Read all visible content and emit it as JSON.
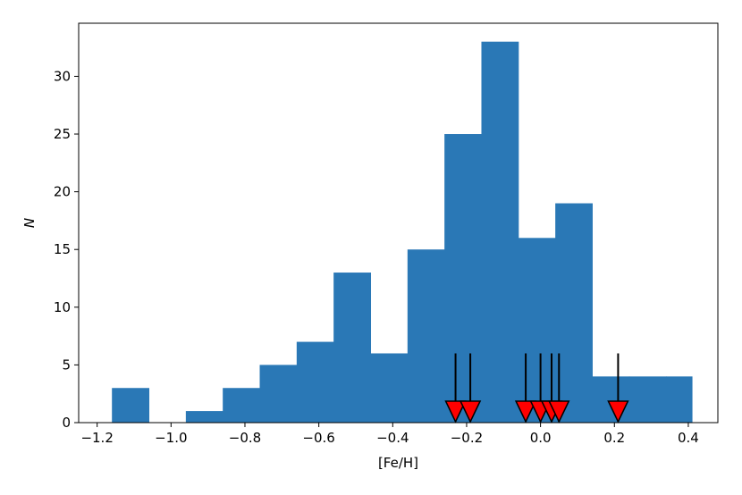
{
  "chart_data": {
    "type": "bar",
    "title": "",
    "xlabel": "[Fe/H]",
    "ylabel": "N",
    "xlim": [
      -1.25,
      0.48
    ],
    "ylim": [
      0,
      34.6
    ],
    "xticks": [
      -1.2,
      -1.0,
      -0.8,
      -0.6,
      -0.4,
      -0.2,
      0.0,
      0.2,
      0.4
    ],
    "xtick_labels": [
      "−1.2",
      "−1.0",
      "−0.8",
      "−0.6",
      "−0.4",
      "−0.2",
      "0.0",
      "0.2",
      "0.4"
    ],
    "yticks": [
      0,
      5,
      10,
      15,
      20,
      25,
      30
    ],
    "ytick_labels": [
      "0",
      "5",
      "10",
      "15",
      "20",
      "25",
      "30"
    ],
    "grid": false,
    "bar_color": "#2a78b6",
    "bins": [
      {
        "start": -1.16,
        "end": -1.06,
        "count": 3
      },
      {
        "start": -1.06,
        "end": -0.96,
        "count": 0
      },
      {
        "start": -0.96,
        "end": -0.86,
        "count": 1
      },
      {
        "start": -0.86,
        "end": -0.76,
        "count": 3
      },
      {
        "start": -0.76,
        "end": -0.66,
        "count": 5
      },
      {
        "start": -0.66,
        "end": -0.56,
        "count": 7
      },
      {
        "start": -0.56,
        "end": -0.46,
        "count": 13
      },
      {
        "start": -0.46,
        "end": -0.36,
        "count": 6
      },
      {
        "start": -0.36,
        "end": -0.26,
        "count": 15
      },
      {
        "start": -0.26,
        "end": -0.16,
        "count": 25
      },
      {
        "start": -0.16,
        "end": -0.06,
        "count": 33
      },
      {
        "start": -0.06,
        "end": 0.04,
        "count": 16
      },
      {
        "start": 0.04,
        "end": 0.14,
        "count": 19
      },
      {
        "start": 0.14,
        "end": 0.24,
        "count": 4
      },
      {
        "start": 0.24,
        "end": 0.34,
        "count": 4
      },
      {
        "start": 0.34,
        "end": 0.41,
        "count": 4
      }
    ],
    "markers": {
      "color": "#ff0000",
      "arrow_color": "#000000",
      "arrow_top": 6,
      "values": [
        -0.23,
        -0.19,
        -0.04,
        0.0,
        0.03,
        0.05,
        0.21
      ]
    }
  }
}
